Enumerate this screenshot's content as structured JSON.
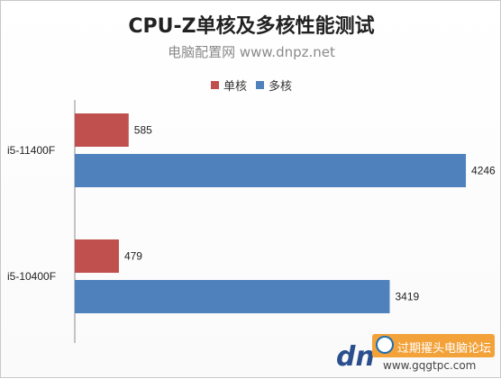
{
  "chart_data": {
    "type": "bar",
    "orientation": "horizontal",
    "title": "CPU-Z单核及多核性能测试",
    "subtitle": "电脑配置网 www.dnpz.net",
    "categories": [
      "i5-11400F",
      "i5-10400F"
    ],
    "series": [
      {
        "name": "单核",
        "values": [
          585,
          479
        ],
        "color": "#c0504d"
      },
      {
        "name": "多核",
        "values": [
          4246,
          3419
        ],
        "color": "#4f81bd"
      }
    ],
    "xlim": [
      0,
      4500
    ],
    "grid": false,
    "legend_position": "top"
  },
  "watermark": {
    "text": "过期擢头电脑论坛",
    "url": "www.gqgtpc.com"
  }
}
